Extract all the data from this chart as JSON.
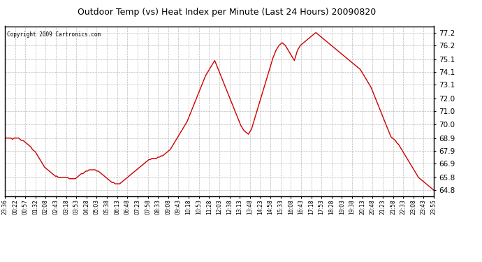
{
  "title": "Outdoor Temp (vs) Heat Index per Minute (Last 24 Hours) 20090820",
  "copyright": "Copyright 2009 Cartronics.com",
  "line_color": "#cc0000",
  "background_color": "#ffffff",
  "plot_bg_color": "#ffffff",
  "grid_color": "#bbbbbb",
  "yticks": [
    64.8,
    65.8,
    66.9,
    67.9,
    68.9,
    70.0,
    71.0,
    72.0,
    73.1,
    74.1,
    75.1,
    76.2,
    77.2
  ],
  "xtick_labels": [
    "23:36",
    "00:22",
    "00:57",
    "01:32",
    "02:08",
    "02:43",
    "03:18",
    "03:53",
    "04:28",
    "05:03",
    "05:38",
    "06:13",
    "06:48",
    "07:23",
    "07:58",
    "08:33",
    "09:08",
    "09:43",
    "10:18",
    "10:53",
    "11:28",
    "12:03",
    "12:38",
    "13:13",
    "13:48",
    "14:23",
    "14:58",
    "15:33",
    "16:08",
    "16:43",
    "17:18",
    "17:53",
    "18:28",
    "19:03",
    "19:38",
    "20:13",
    "20:48",
    "21:23",
    "21:58",
    "22:33",
    "23:08",
    "23:43",
    "23:55"
  ],
  "ylim": [
    64.3,
    77.7
  ],
  "ydata": [
    68.9,
    68.9,
    68.9,
    68.9,
    68.9,
    68.8,
    68.9,
    68.9,
    68.9,
    68.9,
    68.8,
    68.7,
    68.7,
    68.6,
    68.5,
    68.4,
    68.3,
    68.2,
    68.0,
    67.9,
    67.8,
    67.6,
    67.4,
    67.2,
    67.0,
    66.8,
    66.6,
    66.5,
    66.4,
    66.3,
    66.2,
    66.1,
    66.0,
    65.9,
    65.9,
    65.8,
    65.8,
    65.8,
    65.8,
    65.8,
    65.8,
    65.8,
    65.7,
    65.7,
    65.7,
    65.7,
    65.7,
    65.8,
    65.9,
    66.0,
    66.1,
    66.1,
    66.2,
    66.3,
    66.3,
    66.4,
    66.4,
    66.4,
    66.4,
    66.4,
    66.3,
    66.3,
    66.2,
    66.1,
    66.0,
    65.9,
    65.8,
    65.7,
    65.6,
    65.5,
    65.4,
    65.4,
    65.3,
    65.3,
    65.3,
    65.3,
    65.4,
    65.5,
    65.6,
    65.7,
    65.8,
    65.9,
    66.0,
    66.1,
    66.2,
    66.3,
    66.4,
    66.5,
    66.6,
    66.7,
    66.8,
    66.9,
    67.0,
    67.1,
    67.2,
    67.2,
    67.3,
    67.3,
    67.3,
    67.3,
    67.4,
    67.4,
    67.5,
    67.5,
    67.6,
    67.7,
    67.8,
    67.9,
    68.0,
    68.2,
    68.4,
    68.6,
    68.8,
    69.0,
    69.2,
    69.4,
    69.6,
    69.8,
    70.0,
    70.2,
    70.5,
    70.8,
    71.1,
    71.4,
    71.7,
    72.0,
    72.3,
    72.6,
    72.9,
    73.2,
    73.5,
    73.8,
    74.0,
    74.2,
    74.4,
    74.6,
    74.8,
    75.0,
    74.7,
    74.4,
    74.1,
    73.8,
    73.5,
    73.2,
    72.9,
    72.6,
    72.3,
    72.0,
    71.7,
    71.4,
    71.1,
    70.8,
    70.5,
    70.2,
    69.9,
    69.7,
    69.5,
    69.4,
    69.3,
    69.2,
    69.4,
    69.6,
    70.0,
    70.4,
    70.8,
    71.2,
    71.6,
    72.0,
    72.4,
    72.8,
    73.2,
    73.6,
    74.0,
    74.4,
    74.8,
    75.2,
    75.5,
    75.8,
    76.0,
    76.2,
    76.3,
    76.4,
    76.3,
    76.2,
    76.0,
    75.8,
    75.6,
    75.4,
    75.2,
    75.0,
    75.4,
    75.8,
    76.0,
    76.2,
    76.3,
    76.4,
    76.5,
    76.6,
    76.7,
    76.8,
    76.9,
    77.0,
    77.1,
    77.2,
    77.1,
    77.0,
    76.9,
    76.8,
    76.7,
    76.6,
    76.5,
    76.4,
    76.3,
    76.2,
    76.1,
    76.0,
    75.9,
    75.8,
    75.7,
    75.6,
    75.5,
    75.4,
    75.3,
    75.2,
    75.1,
    75.0,
    74.9,
    74.8,
    74.7,
    74.6,
    74.5,
    74.4,
    74.3,
    74.1,
    73.9,
    73.7,
    73.5,
    73.3,
    73.1,
    72.9,
    72.6,
    72.3,
    72.0,
    71.7,
    71.4,
    71.1,
    70.8,
    70.5,
    70.2,
    69.9,
    69.6,
    69.3,
    69.0,
    68.9,
    68.8,
    68.7,
    68.5,
    68.4,
    68.2,
    68.0,
    67.8,
    67.6,
    67.4,
    67.2,
    67.0,
    66.8,
    66.6,
    66.4,
    66.2,
    66.0,
    65.8,
    65.7,
    65.6,
    65.5,
    65.4,
    65.3,
    65.2,
    65.1,
    65.0,
    64.9,
    64.8
  ]
}
